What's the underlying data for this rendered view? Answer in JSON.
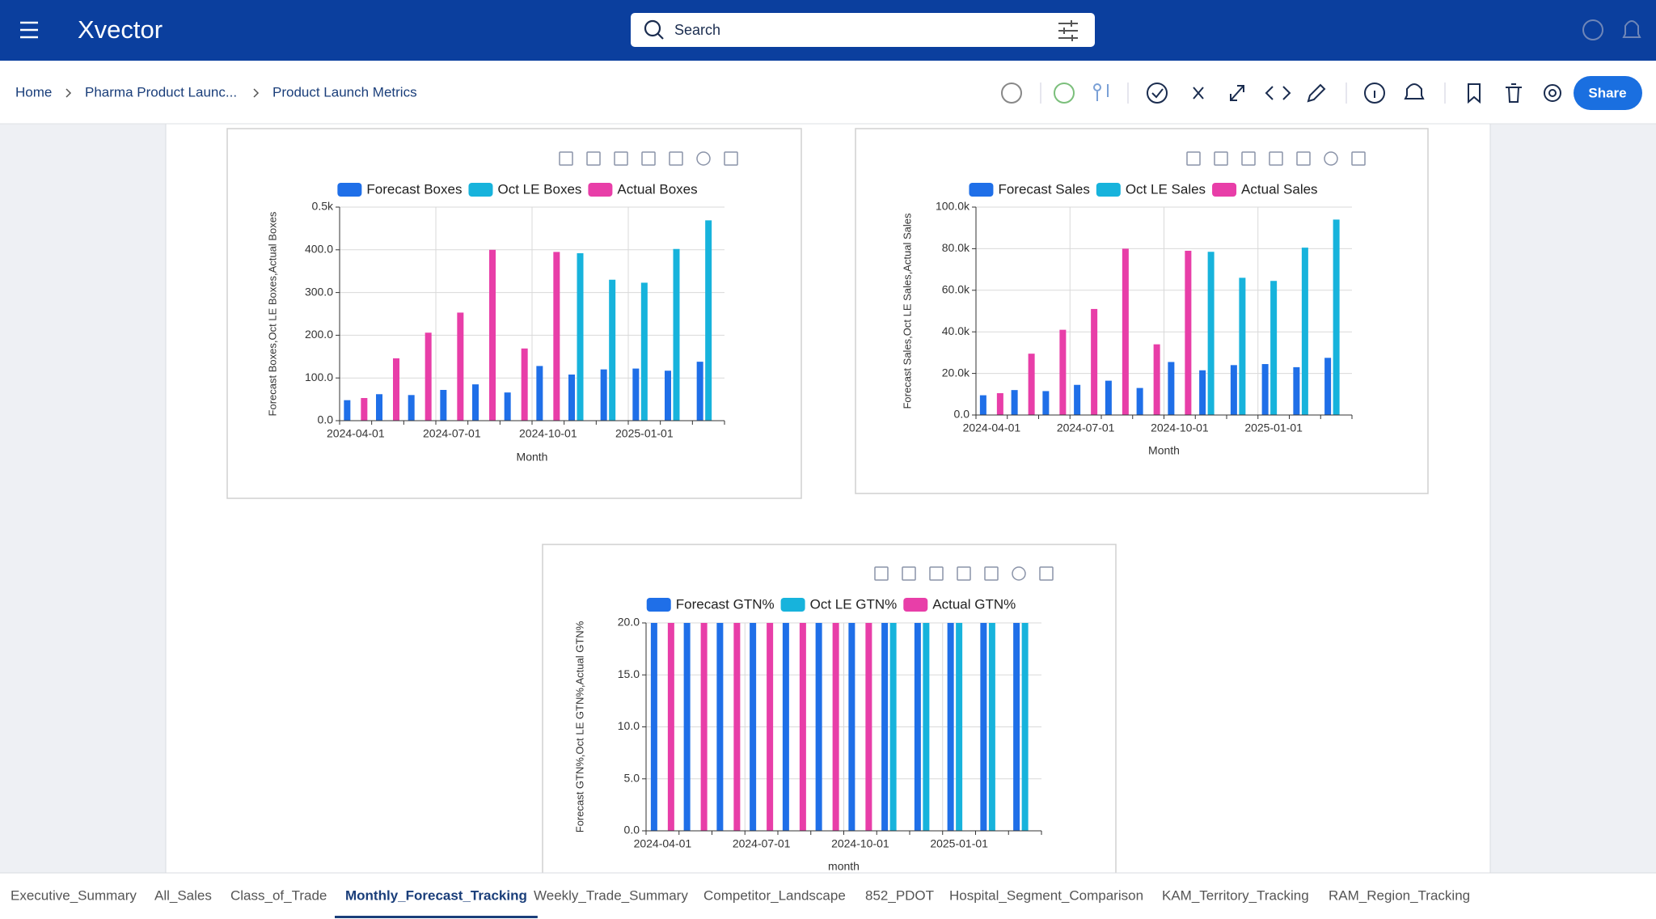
{
  "header": {
    "logo": "Xvector",
    "search_placeholder": "Search"
  },
  "breadcrumb": [
    "Home",
    "Pharma Product Launc...",
    "Product Launch Metrics"
  ],
  "share_button": "Share",
  "chart_data": [
    {
      "type": "bar",
      "y_label": "Forecast Boxes,Oct LE Boxes,Actual Boxes",
      "x_label": "Month",
      "categories": [
        "2024-04-01",
        null,
        null,
        "2024-07-01",
        null,
        null,
        "2024-10-01",
        null,
        null,
        "2025-01-01",
        null,
        null
      ],
      "series": [
        {
          "name": "Forecast Boxes",
          "color": "#1f6fe8",
          "values": [
            48,
            62,
            60,
            72,
            85,
            66,
            128,
            108,
            120,
            122,
            117,
            138
          ]
        },
        {
          "name": "Oct LE Boxes",
          "color": "#17b3dc",
          "values": [
            null,
            null,
            null,
            null,
            null,
            null,
            null,
            392,
            330,
            323,
            402,
            469
          ]
        },
        {
          "name": "Actual Boxes",
          "color": "#e83ea8",
          "values": [
            53,
            146,
            206,
            253,
            400,
            169,
            395,
            null,
            null,
            null,
            null,
            null
          ]
        }
      ],
      "ylim": [
        0,
        500
      ],
      "yticks": [
        {
          "value": 0,
          "label": "0.0"
        },
        {
          "value": 100,
          "label": "100.0"
        },
        {
          "value": 200,
          "label": "200.0"
        },
        {
          "value": 300,
          "label": "300.0"
        },
        {
          "value": 400,
          "label": "400.0"
        },
        {
          "value": 500,
          "label": "0.5k"
        }
      ],
      "grid": true
    },
    {
      "type": "bar",
      "y_label": "Forecast Sales,Oct LE Sales,Actual Sales",
      "x_label": "Month",
      "categories": [
        "2024-04-01",
        null,
        null,
        "2024-07-01",
        null,
        null,
        "2024-10-01",
        null,
        null,
        "2025-01-01",
        null,
        null
      ],
      "series": [
        {
          "name": "Forecast Sales",
          "color": "#1f6fe8",
          "values": [
            9500,
            12000,
            11500,
            14500,
            16500,
            13000,
            25500,
            21500,
            24000,
            24500,
            23000,
            27500
          ]
        },
        {
          "name": "Oct LE Sales",
          "color": "#17b3dc",
          "values": [
            null,
            null,
            null,
            null,
            null,
            null,
            null,
            78500,
            66000,
            64500,
            80500,
            94000
          ]
        },
        {
          "name": "Actual Sales",
          "color": "#e83ea8",
          "values": [
            10500,
            29500,
            41000,
            51000,
            80000,
            34000,
            79000,
            null,
            null,
            null,
            null,
            null
          ]
        }
      ],
      "ylim": [
        0,
        100000
      ],
      "yticks": [
        {
          "value": 0,
          "label": "0.0"
        },
        {
          "value": 20000,
          "label": "20.0k"
        },
        {
          "value": 40000,
          "label": "40.0k"
        },
        {
          "value": 60000,
          "label": "60.0k"
        },
        {
          "value": 80000,
          "label": "80.0k"
        },
        {
          "value": 100000,
          "label": "100.0k"
        }
      ],
      "grid": true
    },
    {
      "type": "bar",
      "y_label": "Forecast GTN%,Oct LE GTN%,Actual GTN%",
      "x_label": "month",
      "categories": [
        "2024-04-01",
        null,
        null,
        "2024-07-01",
        null,
        null,
        "2024-10-01",
        null,
        null,
        "2025-01-01",
        null,
        null
      ],
      "series": [
        {
          "name": "Forecast GTN%",
          "color": "#1f6fe8",
          "values": [
            20,
            20,
            20,
            20,
            20,
            20,
            20,
            20,
            20,
            20,
            20,
            20
          ]
        },
        {
          "name": "Oct LE GTN%",
          "color": "#17b3dc",
          "values": [
            null,
            null,
            null,
            null,
            null,
            null,
            null,
            20,
            20,
            20,
            20,
            20
          ]
        },
        {
          "name": "Actual GTN%",
          "color": "#e83ea8",
          "values": [
            20,
            20,
            20,
            20,
            20,
            20,
            20,
            null,
            null,
            null,
            null,
            null
          ]
        }
      ],
      "ylim": [
        0,
        20
      ],
      "yticks": [
        {
          "value": 0,
          "label": "0.0"
        },
        {
          "value": 5,
          "label": "5.0"
        },
        {
          "value": 10,
          "label": "10.0"
        },
        {
          "value": 15,
          "label": "15.0"
        },
        {
          "value": 20,
          "label": "20.0"
        }
      ],
      "grid": true
    }
  ],
  "tabs": [
    "Executive_Summary",
    "All_Sales",
    "Class_of_Trade",
    "Monthly_Forecast_Tracking",
    "Weekly_Trade_Summary",
    "Competitor_Landscape",
    "852_PDOT",
    "Hospital_Segment_Comparison",
    "KAM_Territory_Tracking",
    "RAM_Region_Tracking"
  ],
  "active_tab": 3
}
